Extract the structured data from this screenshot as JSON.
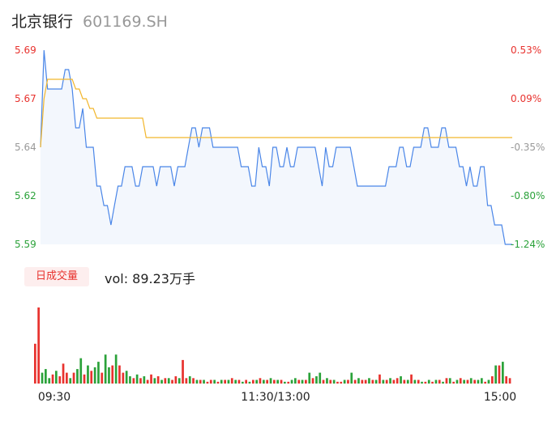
{
  "header": {
    "name": "北京银行",
    "code": "601169.SH"
  },
  "colors": {
    "up": "#e8322e",
    "down": "#2ba23a",
    "neutral": "#999999",
    "price_line": "#4a86e8",
    "avg_line": "#f2b62c"
  },
  "volume": {
    "tab_label": "日成交量",
    "vol_text": "vol: 89.23万手"
  },
  "chart_data": [
    {
      "type": "line",
      "title": "",
      "y_left_ticks": [
        "5.69",
        "5.67",
        "5.64",
        "5.62",
        "5.59"
      ],
      "y_right_ticks": [
        "0.53%",
        "0.09%",
        "-0.35%",
        "-0.80%",
        "-1.24%"
      ],
      "ylim": [
        5.59,
        5.69
      ],
      "x_ticks": [
        "09:30",
        "11:30/13:00",
        "15:00"
      ],
      "series": [
        {
          "values": [
            5.64,
            5.69,
            5.67,
            5.67,
            5.67,
            5.67,
            5.67,
            5.68,
            5.68,
            5.67,
            5.65,
            5.65,
            5.66,
            5.64,
            5.64,
            5.64,
            5.62,
            5.62,
            5.61,
            5.61,
            5.6,
            5.61,
            5.62,
            5.62,
            5.63,
            5.63,
            5.63,
            5.62,
            5.62,
            5.63,
            5.63,
            5.63,
            5.63,
            5.62,
            5.63,
            5.63,
            5.63,
            5.63,
            5.62,
            5.63,
            5.63,
            5.63,
            5.64,
            5.65,
            5.65,
            5.64,
            5.65,
            5.65,
            5.65,
            5.64,
            5.64,
            5.64,
            5.64,
            5.64,
            5.64,
            5.64,
            5.64,
            5.63,
            5.63,
            5.63,
            5.62,
            5.62,
            5.64,
            5.63,
            5.63,
            5.62,
            5.64,
            5.64,
            5.63,
            5.63,
            5.64,
            5.63,
            5.63,
            5.64,
            5.64,
            5.64,
            5.64,
            5.64,
            5.64,
            5.63,
            5.62,
            5.64,
            5.63,
            5.63,
            5.64,
            5.64,
            5.64,
            5.64,
            5.64,
            5.63,
            5.62,
            5.62,
            5.62,
            5.62,
            5.62,
            5.62,
            5.62,
            5.62,
            5.62,
            5.63,
            5.63,
            5.63,
            5.64,
            5.64,
            5.63,
            5.63,
            5.64,
            5.64,
            5.64,
            5.65,
            5.65,
            5.64,
            5.64,
            5.64,
            5.65,
            5.65,
            5.64,
            5.64,
            5.64,
            5.63,
            5.63,
            5.62,
            5.63,
            5.62,
            5.62,
            5.63,
            5.63,
            5.61,
            5.61,
            5.6,
            5.6,
            5.6,
            5.59,
            5.59,
            5.59
          ]
        },
        {
          "values": [
            5.64,
            5.665,
            5.675,
            5.675,
            5.675,
            5.675,
            5.675,
            5.675,
            5.675,
            5.675,
            5.67,
            5.67,
            5.665,
            5.665,
            5.66,
            5.66,
            5.655,
            5.655,
            5.655,
            5.655,
            5.655,
            5.655,
            5.655,
            5.655,
            5.655,
            5.655,
            5.655,
            5.655,
            5.655,
            5.655,
            5.645,
            5.645,
            5.645,
            5.645,
            5.645,
            5.645,
            5.645,
            5.645,
            5.645,
            5.645,
            5.645,
            5.645,
            5.645,
            5.645,
            5.645,
            5.645,
            5.645,
            5.645,
            5.645,
            5.645,
            5.645,
            5.645,
            5.645,
            5.645,
            5.645,
            5.645,
            5.645,
            5.645,
            5.645,
            5.645,
            5.645,
            5.645,
            5.645,
            5.645,
            5.645,
            5.645,
            5.645,
            5.645,
            5.645,
            5.645,
            5.645,
            5.645,
            5.645,
            5.645,
            5.645,
            5.645,
            5.645,
            5.645,
            5.645,
            5.645,
            5.645,
            5.645,
            5.645,
            5.645,
            5.645,
            5.645,
            5.645,
            5.645,
            5.645,
            5.645,
            5.645,
            5.645,
            5.645,
            5.645,
            5.645,
            5.645,
            5.645,
            5.645,
            5.645,
            5.645,
            5.645,
            5.645,
            5.645,
            5.645,
            5.645,
            5.645,
            5.645,
            5.645,
            5.645,
            5.645,
            5.645,
            5.645,
            5.645,
            5.645,
            5.645,
            5.645,
            5.645,
            5.645,
            5.645,
            5.645,
            5.645,
            5.645,
            5.645,
            5.645,
            5.645,
            5.645,
            5.645,
            5.645,
            5.645,
            5.645,
            5.645,
            5.645,
            5.645,
            5.645,
            5.645
          ]
        }
      ]
    },
    {
      "type": "bar",
      "title": "",
      "unit": "万手",
      "values": [
        2.2,
        4.2,
        0.6,
        0.8,
        0.3,
        0.5,
        0.7,
        0.4,
        1.1,
        0.6,
        0.3,
        0.6,
        0.8,
        1.4,
        0.5,
        1.0,
        0.7,
        0.9,
        1.2,
        0.6,
        1.6,
        0.9,
        1.0,
        1.6,
        1.0,
        0.6,
        0.7,
        0.4,
        0.3,
        0.5,
        0.3,
        0.4,
        0.2,
        0.5,
        0.3,
        0.4,
        0.2,
        0.3,
        0.3,
        0.2,
        0.4,
        0.3,
        1.3,
        0.3,
        0.4,
        0.3,
        0.2,
        0.2,
        0.2,
        0.1,
        0.2,
        0.2,
        0.1,
        0.2,
        0.2,
        0.2,
        0.3,
        0.2,
        0.2,
        0.1,
        0.2,
        0.1,
        0.2,
        0.2,
        0.3,
        0.2,
        0.2,
        0.3,
        0.2,
        0.2,
        0.2,
        0.1,
        0.1,
        0.2,
        0.3,
        0.2,
        0.2,
        0.2,
        0.6,
        0.3,
        0.4,
        0.6,
        0.2,
        0.3,
        0.2,
        0.2,
        0.1,
        0.1,
        0.2,
        0.2,
        0.6,
        0.2,
        0.3,
        0.2,
        0.2,
        0.3,
        0.2,
        0.2,
        0.5,
        0.2,
        0.2,
        0.3,
        0.2,
        0.3,
        0.4,
        0.2,
        0.2,
        0.5,
        0.2,
        0.2,
        0.1,
        0.1,
        0.2,
        0.1,
        0.2,
        0.2,
        0.1,
        0.3,
        0.3,
        0.1,
        0.2,
        0.3,
        0.2,
        0.2,
        0.3,
        0.2,
        0.2,
        0.3,
        0.1,
        0.2,
        0.4,
        1.0,
        1.0,
        1.2,
        0.4,
        0.3
      ],
      "colors": [
        "r",
        "r",
        "g",
        "g",
        "g",
        "r",
        "g",
        "r",
        "r",
        "r",
        "g",
        "r",
        "g",
        "g",
        "r",
        "g",
        "r",
        "g",
        "g",
        "r",
        "g",
        "g",
        "r",
        "g",
        "r",
        "r",
        "g",
        "g",
        "r",
        "g",
        "r",
        "g",
        "r",
        "r",
        "g",
        "r",
        "g",
        "r",
        "g",
        "r",
        "r",
        "g",
        "r",
        "r",
        "g",
        "r",
        "g",
        "r",
        "g",
        "r",
        "r",
        "g",
        "r",
        "g",
        "r",
        "g",
        "r",
        "g",
        "r",
        "g",
        "r",
        "g",
        "r",
        "g",
        "r",
        "g",
        "r",
        "g",
        "r",
        "g",
        "r",
        "g",
        "r",
        "g",
        "g",
        "r",
        "g",
        "r",
        "g",
        "r",
        "g",
        "g",
        "r",
        "g",
        "r",
        "g",
        "r",
        "r",
        "g",
        "r",
        "g",
        "r",
        "g",
        "r",
        "r",
        "g",
        "r",
        "g",
        "r",
        "g",
        "r",
        "g",
        "r",
        "r",
        "g",
        "r",
        "g",
        "r",
        "g",
        "r",
        "g",
        "r",
        "g",
        "r",
        "g",
        "r",
        "g",
        "r",
        "g",
        "r",
        "g",
        "r",
        "g",
        "r",
        "g",
        "r",
        "g",
        "g",
        "r",
        "g",
        "r",
        "g",
        "r",
        "g",
        "r",
        "r"
      ]
    }
  ]
}
